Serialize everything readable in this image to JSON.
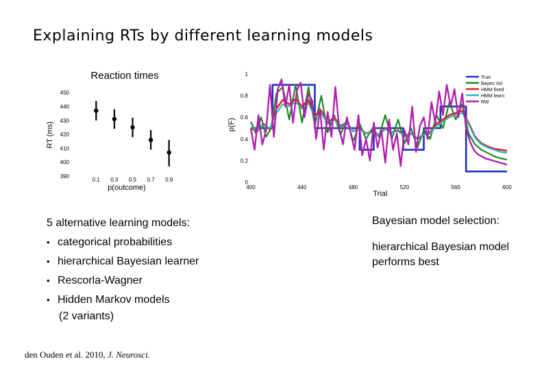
{
  "slide": {
    "title": "Explaining RTs by different learning models"
  },
  "left_list": {
    "heading": "5 alternative learning models:",
    "items": [
      "categorical probabilities",
      "hierarchical Bayesian learner",
      "Rescorla-Wagner",
      "Hidden Markov models",
      "(2 variants)"
    ]
  },
  "right_text": {
    "heading": "Bayesian model selection:",
    "body": "hierarchical Bayesian model performs best"
  },
  "citation": {
    "authors": "den Ouden et al. 2010, ",
    "journal": "J. Neurosci."
  },
  "chart_data": [
    {
      "type": "scatter",
      "title": "Reaction times",
      "xlabel": "p(outcome)",
      "ylabel": "RT (ms)",
      "x": [
        0.1,
        0.3,
        0.5,
        0.7,
        0.9
      ],
      "y": [
        437,
        431,
        425,
        416,
        407
      ],
      "error_low": [
        430,
        424,
        418,
        409,
        397
      ],
      "error_high": [
        444,
        438,
        432,
        423,
        416
      ],
      "xticks": [
        "0.1",
        "0.3",
        "0.5",
        "0.7",
        "0.9"
      ],
      "xtick_values": [
        0.1,
        0.3,
        0.5,
        0.7,
        0.9
      ],
      "yticks": [
        "390",
        "400",
        "410",
        "420",
        "430",
        "440",
        "450"
      ],
      "ytick_values": [
        390,
        400,
        410,
        420,
        430,
        440,
        450
      ],
      "xlim": [
        0.0,
        1.0
      ],
      "ylim": [
        390,
        455
      ]
    },
    {
      "type": "line",
      "xlabel": "Trial",
      "ylabel": "p(F)",
      "xlim": [
        400,
        600
      ],
      "ylim": [
        0,
        1
      ],
      "xticks": [
        "400",
        "440",
        "480",
        "520",
        "560",
        "600"
      ],
      "xtick_values": [
        400,
        440,
        480,
        520,
        560,
        600
      ],
      "yticks": [
        "0",
        "0.2",
        "0.4",
        "0.6",
        "0.8",
        "1"
      ],
      "ytick_values": [
        0,
        0.2,
        0.4,
        0.6,
        0.8,
        1
      ],
      "legend_position": "top-right",
      "series": [
        {
          "name": "True",
          "color": "#1f2fbf",
          "x": [
            400,
            417,
            417,
            450,
            450,
            485,
            485,
            496,
            496,
            519,
            519,
            535,
            535,
            548,
            548,
            568,
            568,
            600
          ],
          "y": [
            0.5,
            0.5,
            0.9,
            0.9,
            0.5,
            0.5,
            0.3,
            0.3,
            0.5,
            0.5,
            0.3,
            0.3,
            0.5,
            0.5,
            0.7,
            0.7,
            0.1,
            0.1
          ]
        },
        {
          "name": "Bayes Vol",
          "color": "#1a8a1a",
          "x": [
            400,
            404,
            408,
            412,
            416,
            420,
            425,
            430,
            435,
            440,
            445,
            450,
            455,
            460,
            465,
            470,
            475,
            480,
            485,
            490,
            495,
            500,
            505,
            510,
            515,
            520,
            525,
            530,
            535,
            540,
            545,
            550,
            555,
            560,
            565,
            570,
            575,
            580,
            585,
            590,
            595,
            600
          ],
          "y": [
            0.56,
            0.45,
            0.6,
            0.42,
            0.5,
            0.82,
            0.88,
            0.58,
            0.9,
            0.55,
            0.88,
            0.52,
            0.8,
            0.46,
            0.62,
            0.44,
            0.58,
            0.38,
            0.54,
            0.4,
            0.5,
            0.42,
            0.62,
            0.4,
            0.58,
            0.36,
            0.5,
            0.32,
            0.48,
            0.4,
            0.62,
            0.5,
            0.74,
            0.58,
            0.72,
            0.45,
            0.35,
            0.3,
            0.27,
            0.24,
            0.22,
            0.21
          ]
        },
        {
          "name": "HMM fixed",
          "color": "#d62020",
          "x": [
            400,
            405,
            410,
            415,
            420,
            425,
            430,
            435,
            440,
            445,
            450,
            455,
            460,
            465,
            470,
            475,
            480,
            485,
            490,
            495,
            500,
            505,
            510,
            515,
            520,
            525,
            530,
            535,
            540,
            545,
            550,
            555,
            560,
            565,
            570,
            575,
            580,
            585,
            590,
            595,
            600
          ],
          "y": [
            0.5,
            0.47,
            0.54,
            0.49,
            0.68,
            0.76,
            0.72,
            0.77,
            0.7,
            0.76,
            0.62,
            0.66,
            0.55,
            0.6,
            0.52,
            0.55,
            0.47,
            0.5,
            0.45,
            0.47,
            0.44,
            0.5,
            0.46,
            0.48,
            0.43,
            0.45,
            0.4,
            0.44,
            0.46,
            0.54,
            0.58,
            0.62,
            0.64,
            0.66,
            0.55,
            0.42,
            0.36,
            0.33,
            0.31,
            0.3,
            0.29
          ]
        },
        {
          "name": "HMM learn",
          "color": "#2bb5c4",
          "x": [
            400,
            405,
            410,
            415,
            420,
            425,
            430,
            435,
            440,
            445,
            450,
            455,
            460,
            465,
            470,
            475,
            480,
            485,
            490,
            495,
            500,
            505,
            510,
            515,
            520,
            525,
            530,
            535,
            540,
            545,
            550,
            555,
            560,
            565,
            570,
            575,
            580,
            585,
            590,
            595,
            600
          ],
          "y": [
            0.51,
            0.48,
            0.53,
            0.5,
            0.64,
            0.72,
            0.7,
            0.74,
            0.68,
            0.73,
            0.6,
            0.64,
            0.54,
            0.58,
            0.51,
            0.54,
            0.47,
            0.49,
            0.45,
            0.46,
            0.44,
            0.49,
            0.46,
            0.47,
            0.43,
            0.45,
            0.41,
            0.44,
            0.45,
            0.52,
            0.56,
            0.6,
            0.62,
            0.64,
            0.54,
            0.41,
            0.35,
            0.32,
            0.3,
            0.28,
            0.27
          ]
        },
        {
          "name": "RW",
          "color": "#b01fb0",
          "x": [
            400,
            403,
            406,
            409,
            412,
            415,
            418,
            421,
            424,
            427,
            430,
            433,
            436,
            439,
            442,
            445,
            448,
            451,
            454,
            457,
            460,
            463,
            466,
            469,
            472,
            475,
            478,
            481,
            484,
            487,
            490,
            493,
            496,
            499,
            502,
            505,
            508,
            511,
            514,
            517,
            520,
            523,
            526,
            529,
            532,
            535,
            538,
            541,
            544,
            547,
            550,
            553,
            556,
            559,
            562,
            565,
            568,
            571,
            574,
            577,
            580,
            583,
            586,
            589,
            592,
            595,
            598,
            600
          ],
          "y": [
            0.5,
            0.3,
            0.62,
            0.35,
            0.48,
            0.9,
            0.42,
            0.86,
            0.95,
            0.7,
            0.9,
            0.55,
            0.85,
            0.92,
            0.6,
            0.82,
            0.75,
            0.4,
            0.68,
            0.3,
            0.65,
            0.42,
            0.88,
            0.5,
            0.35,
            0.6,
            0.45,
            0.3,
            0.62,
            0.25,
            0.4,
            0.2,
            0.55,
            0.32,
            0.48,
            0.18,
            0.58,
            0.3,
            0.45,
            0.15,
            0.48,
            0.35,
            0.7,
            0.28,
            0.52,
            0.6,
            0.4,
            0.74,
            0.55,
            0.84,
            0.62,
            0.9,
            0.7,
            0.86,
            0.6,
            0.82,
            0.5,
            0.38,
            0.3,
            0.26,
            0.24,
            0.22,
            0.21,
            0.2,
            0.19,
            0.18,
            0.17,
            0.16
          ]
        }
      ]
    }
  ]
}
